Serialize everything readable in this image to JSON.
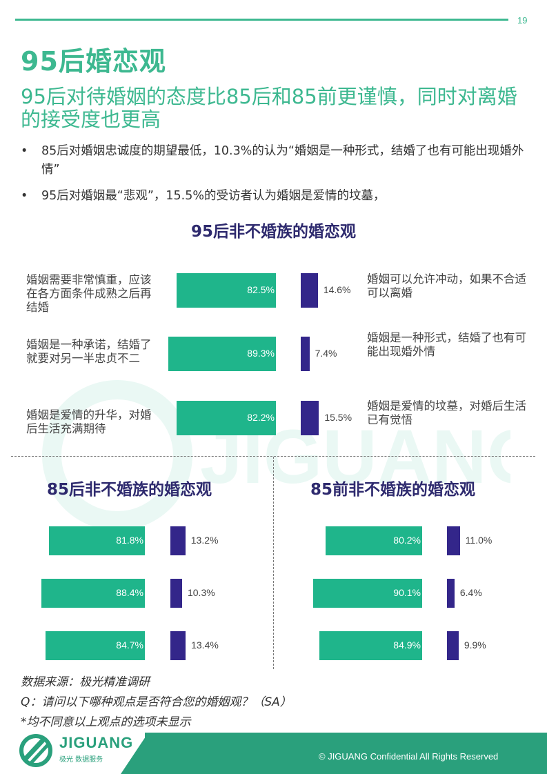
{
  "page_number": "19",
  "title": "95后婚恋观",
  "subtitle": "95后对待婚姻的态度比85后和85前更谨慎，同时对离婚的接受度也更高",
  "bullets": [
    "85后对婚姻忠诚度的期望最低，10.3%的认为“婚姻是一种形式，结婚了也有可能出现婚外情”",
    "95后对婚姻最“悲观”，15.5%的受访者认为婚姻是爱情的坟墓，"
  ],
  "colors": {
    "accent": "#3db890",
    "bar_green": "#1fb58b",
    "bar_purple": "#33268a",
    "chart_title": "#2e2a6e"
  },
  "chart_data": [
    {
      "type": "bar",
      "title": "95后非不婚族的婚恋观",
      "categories": [
        {
          "left": "婚姻需要非常慎重，应该在各方面条件成熟之后再结婚",
          "right": "婚姻可以允许冲动，如果不合适可以离婚"
        },
        {
          "left": "婚姻是一种承诺，结婚了就要对另一半忠贞不二",
          "right": "婚姻是一种形式，结婚了也有可能出现婚外情"
        },
        {
          "left": "婚姻是爱情的升华，对婚后生活充满期待",
          "right": "婚姻是爱情的坟墓，对婚后生活已有觉悟"
        }
      ],
      "series": [
        {
          "values": [
            82.5,
            89.3,
            82.2
          ],
          "labels": [
            "82.5%",
            "89.3%",
            "82.2%"
          ]
        },
        {
          "values": [
            14.6,
            7.4,
            15.5
          ],
          "labels": [
            "14.6%",
            "7.4%",
            "15.5%"
          ]
        }
      ]
    },
    {
      "type": "bar",
      "title": "85后非不婚族的婚恋观",
      "series": [
        {
          "values": [
            81.8,
            88.4,
            84.7
          ],
          "labels": [
            "81.8%",
            "88.4%",
            "84.7%"
          ]
        },
        {
          "values": [
            13.2,
            10.3,
            13.4
          ],
          "labels": [
            "13.2%",
            "10.3%",
            "13.4%"
          ]
        }
      ]
    },
    {
      "type": "bar",
      "title": "85前非不婚族的婚恋观",
      "series": [
        {
          "values": [
            80.2,
            90.1,
            84.9
          ],
          "labels": [
            "80.2%",
            "90.1%",
            "84.9%"
          ]
        },
        {
          "values": [
            11.0,
            6.4,
            9.9
          ],
          "labels": [
            "11.0%",
            "6.4%",
            "9.9%"
          ]
        }
      ]
    }
  ],
  "notes": {
    "source": "数据来源：极光精准调研",
    "question": "Q：请问以下哪种观点是否符合您的婚姻观？（SA）",
    "footnote": "*均不同意以上观点的选项未显示"
  },
  "footer": {
    "brand": "JIGUANG",
    "brand_sub": "极光 数据服务",
    "copyright": "© JIGUANG  Confidential  All Rights Reserved",
    "watermark": "JIGUANG"
  }
}
